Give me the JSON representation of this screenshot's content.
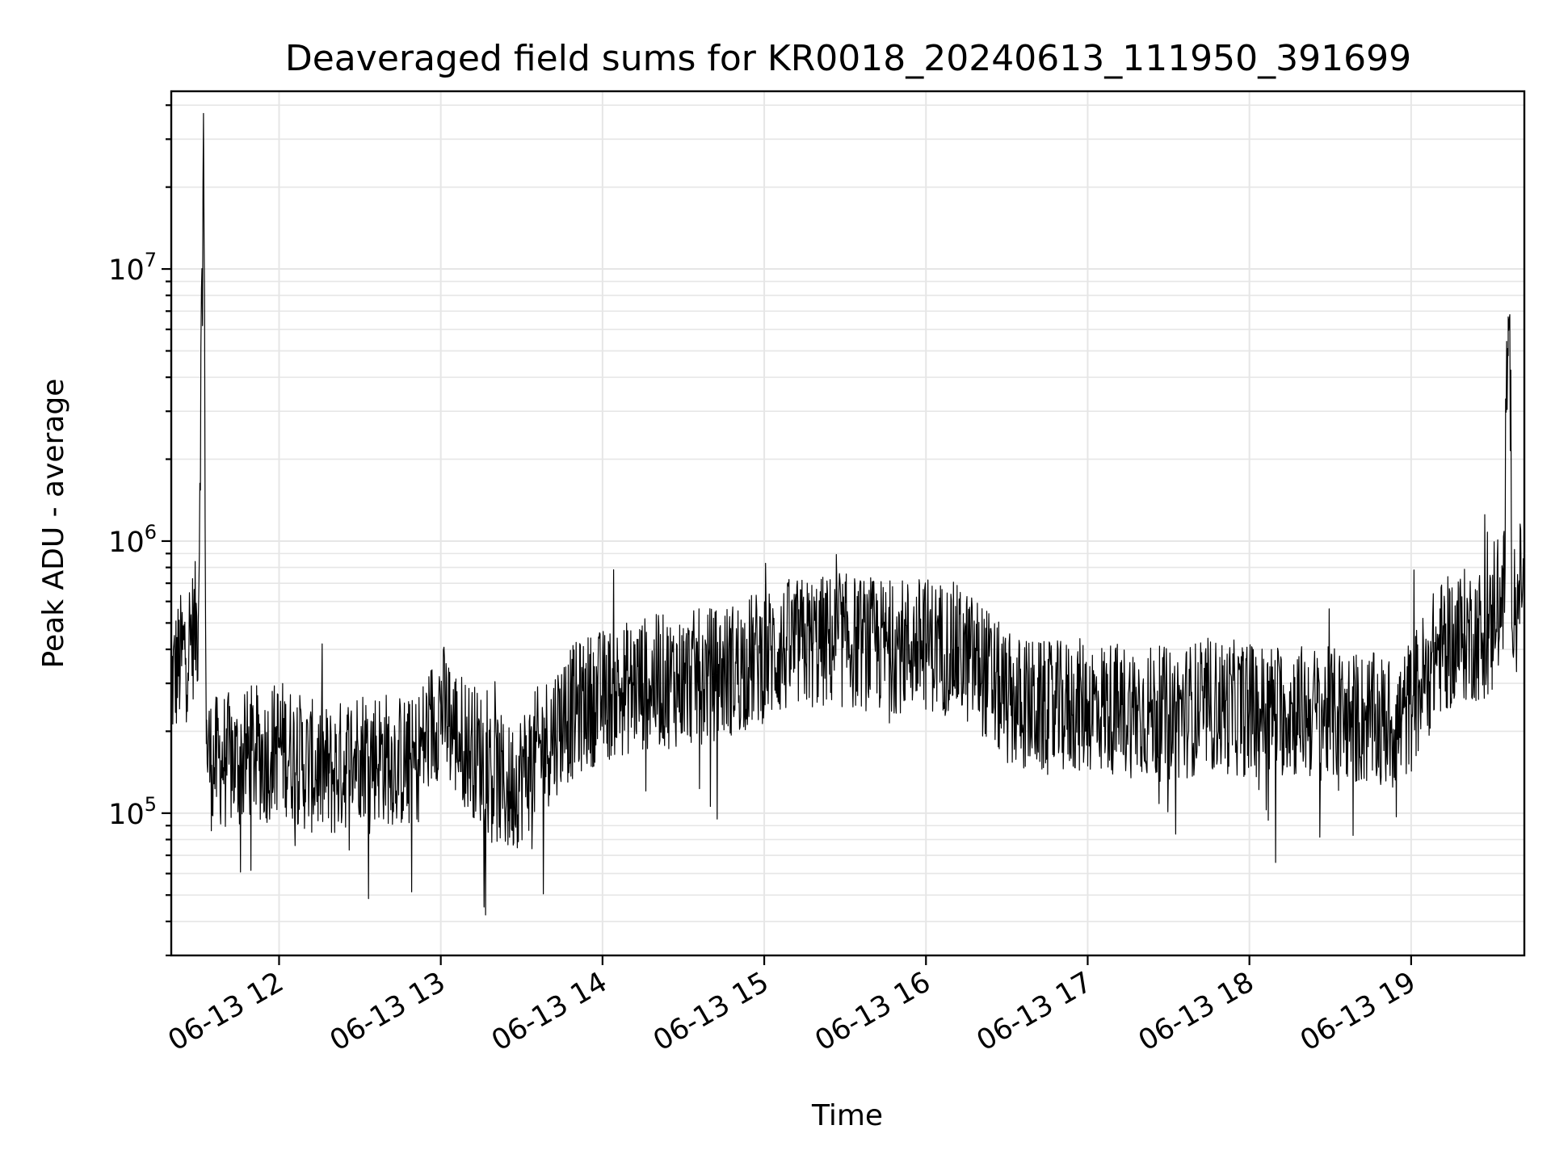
{
  "chart_data": {
    "type": "line",
    "title": "Deaveraged field sums for KR0018_20240613_111950_391699",
    "xlabel": "Time",
    "ylabel": "Peak ADU - average",
    "yscale": "log",
    "ylim": [
      30000,
      45000000
    ],
    "xlim": [
      "2024-06-13 11:20",
      "2024-06-13 19:42"
    ],
    "x_tick_labels": [
      "06-13 12",
      "06-13 13",
      "06-13 14",
      "06-13 15",
      "06-13 16",
      "06-13 17",
      "06-13 18",
      "06-13 19"
    ],
    "y_tick_labels": [
      "10^5",
      "10^6",
      "10^7"
    ],
    "grid": true,
    "legend": "none",
    "line_color": "#000000",
    "series": [
      {
        "x": [
          "2024-06-13 11:20",
          "2024-06-13 11:25",
          "2024-06-13 11:30",
          "2024-06-13 11:32",
          "2024-06-13 11:33",
          "2024-06-13 11:35",
          "2024-06-13 11:40",
          "2024-06-13 11:45",
          "2024-06-13 11:50",
          "2024-06-13 11:55",
          "2024-06-13 12:00",
          "2024-06-13 12:10",
          "2024-06-13 12:20",
          "2024-06-13 12:30",
          "2024-06-13 12:40",
          "2024-06-13 12:50",
          "2024-06-13 13:00",
          "2024-06-13 13:05",
          "2024-06-13 13:15",
          "2024-06-13 13:25",
          "2024-06-13 13:35",
          "2024-06-13 13:45",
          "2024-06-13 13:55",
          "2024-06-13 14:05",
          "2024-06-13 14:15",
          "2024-06-13 14:30",
          "2024-06-13 14:45",
          "2024-06-13 15:00",
          "2024-06-13 15:15",
          "2024-06-13 15:30",
          "2024-06-13 15:45",
          "2024-06-13 16:00",
          "2024-06-13 16:10",
          "2024-06-13 16:20",
          "2024-06-13 16:30",
          "2024-06-13 16:45",
          "2024-06-13 17:00",
          "2024-06-13 17:15",
          "2024-06-13 17:30",
          "2024-06-13 17:45",
          "2024-06-13 18:00",
          "2024-06-13 18:15",
          "2024-06-13 18:30",
          "2024-06-13 18:45",
          "2024-06-13 18:55",
          "2024-06-13 19:00",
          "2024-06-13 19:10",
          "2024-06-13 19:20",
          "2024-06-13 19:30",
          "2024-06-13 19:36",
          "2024-06-13 19:42"
        ],
        "y": [
          300000,
          400000,
          500000,
          32000000,
          180000,
          150000,
          160000,
          150000,
          170000,
          160000,
          180000,
          150000,
          140000,
          170000,
          160000,
          150000,
          250000,
          200000,
          160000,
          120000,
          160000,
          220000,
          260000,
          280000,
          300000,
          310000,
          330000,
          380000,
          420000,
          430000,
          410000,
          420000,
          400000,
          350000,
          260000,
          240000,
          250000,
          240000,
          230000,
          250000,
          240000,
          240000,
          230000,
          220000,
          210000,
          250000,
          400000,
          450000,
          460000,
          4800000,
          600000
        ]
      }
    ]
  }
}
